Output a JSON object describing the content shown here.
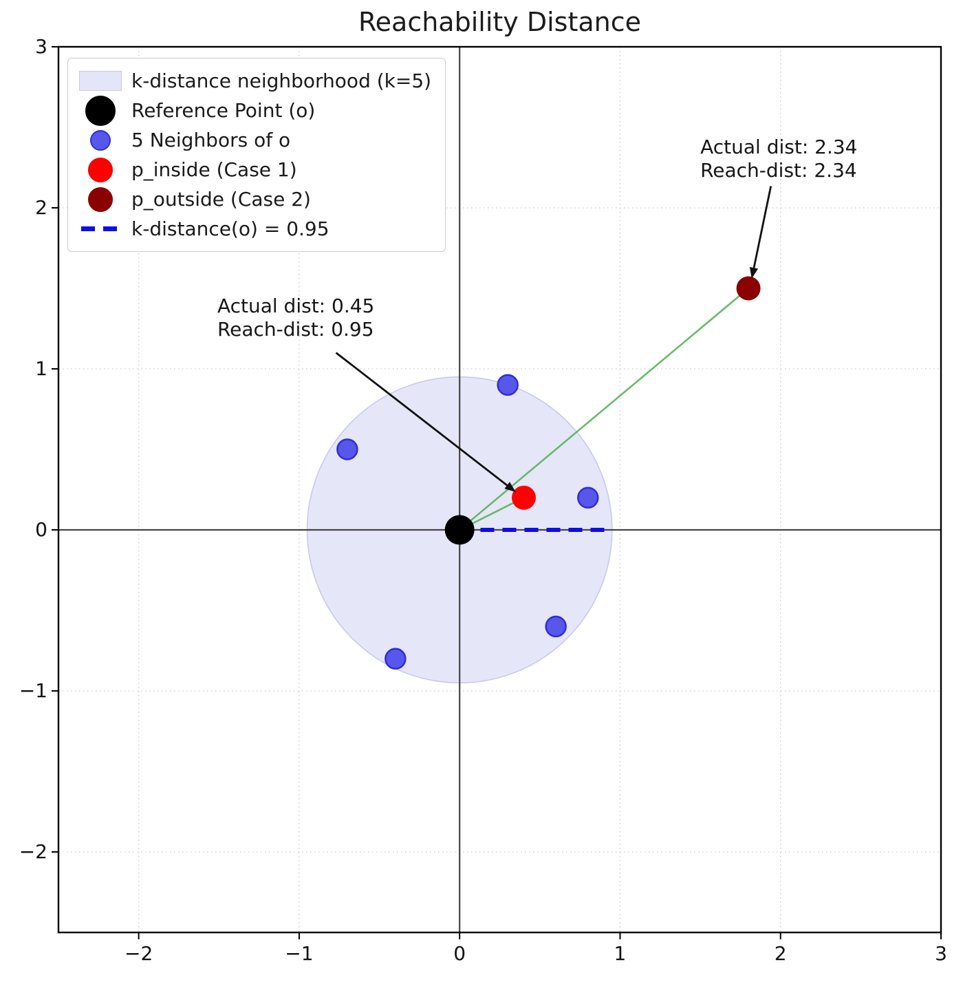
{
  "chart_data": {
    "type": "scatter",
    "title": "Reachability Distance",
    "axes": {
      "xlim": [
        -2.5,
        3.0
      ],
      "ylim": [
        -2.5,
        3.0
      ],
      "x_tick_values": [
        -2,
        -1,
        0,
        1,
        2,
        3
      ],
      "x_tick_labels": [
        "−2",
        "−1",
        "0",
        "1",
        "2",
        "3"
      ],
      "y_tick_values": [
        -2,
        -1,
        0,
        1,
        2,
        3
      ],
      "y_tick_labels": [
        "−2",
        "−1",
        "0",
        "1",
        "2",
        "3"
      ],
      "grid": true,
      "grid_style": "dotted",
      "zero_lines": true
    },
    "neighborhood_circle": {
      "label": "k-distance neighborhood (k=5)",
      "k": 5,
      "center": [
        0,
        0
      ],
      "radius": 0.95,
      "fill": "#E5E5F9",
      "edge": "#C8C8F0"
    },
    "reference_point": {
      "label": "Reference Point (o)",
      "xy": [
        0,
        0
      ],
      "color": "#000000"
    },
    "neighbors": {
      "label": "5 Neighbors of o",
      "fill": "#5757EC",
      "edge": "#2E2ED6",
      "points": [
        [
          0.3,
          0.9
        ],
        [
          -0.7,
          0.5
        ],
        [
          0.8,
          0.2
        ],
        [
          0.6,
          -0.6
        ],
        [
          -0.4,
          -0.8
        ]
      ]
    },
    "p_inside": {
      "label": "p_inside (Case 1)",
      "xy": [
        0.4,
        0.2
      ],
      "color": "#FF0000",
      "actual_dist": 0.45,
      "reach_dist": 0.95
    },
    "p_outside": {
      "label": "p_outside (Case 2)",
      "xy": [
        1.8,
        1.5
      ],
      "color": "#8B0000",
      "actual_dist": 2.34,
      "reach_dist": 2.34
    },
    "k_distance_line": {
      "label": "k-distance(o) = 0.95",
      "value": 0.95,
      "from": [
        0.13,
        0
      ],
      "to": [
        0.95,
        0
      ],
      "color": "#0E0EE6"
    },
    "distance_lines": {
      "color": "#56B556",
      "segments": [
        {
          "name": "o-to-p-inside",
          "from": [
            0,
            0
          ],
          "to": [
            0.4,
            0.2
          ]
        },
        {
          "name": "o-to-p-outside",
          "from": [
            0,
            0
          ],
          "to": [
            1.8,
            1.5
          ]
        }
      ]
    },
    "annotations": [
      {
        "name": "p-inside-annotation",
        "lines": [
          "Actual dist: 0.45",
          "Reach-dist: 0.95"
        ],
        "text_xy": [
          -1.51,
          1.46
        ],
        "arrow_from": [
          -0.77,
          1.1
        ],
        "arrow_to": [
          0.35,
          0.235
        ]
      },
      {
        "name": "p-outside-annotation",
        "lines": [
          "Actual dist: 2.34",
          "Reach-dist: 2.34"
        ],
        "text_xy": [
          1.5,
          2.45
        ],
        "arrow_from": [
          1.94,
          2.135
        ],
        "arrow_to": [
          1.82,
          1.56
        ]
      }
    ],
    "legend": {
      "items": [
        {
          "marker": "patch",
          "label": "k-distance neighborhood (k=5)",
          "color": "#E5E5F9",
          "edge": "#C9C9E8"
        },
        {
          "marker": "dot",
          "size": 44,
          "label": "Reference Point (o)",
          "color": "#000000",
          "edge": "#000000"
        },
        {
          "marker": "dot",
          "size": 30,
          "label": "5 Neighbors of o",
          "color": "#5757EC",
          "edge": "#2E2ED6"
        },
        {
          "marker": "dot",
          "size": 36,
          "label": "p_inside (Case 1)",
          "color": "#FF0000",
          "edge": "#F00000"
        },
        {
          "marker": "dot",
          "size": 36,
          "label": "p_outside (Case 2)",
          "color": "#8B0000",
          "edge": "#8B0000"
        },
        {
          "marker": "dash",
          "label": "k-distance(o) = 0.95",
          "color": "#0E0EE6"
        }
      ]
    }
  }
}
